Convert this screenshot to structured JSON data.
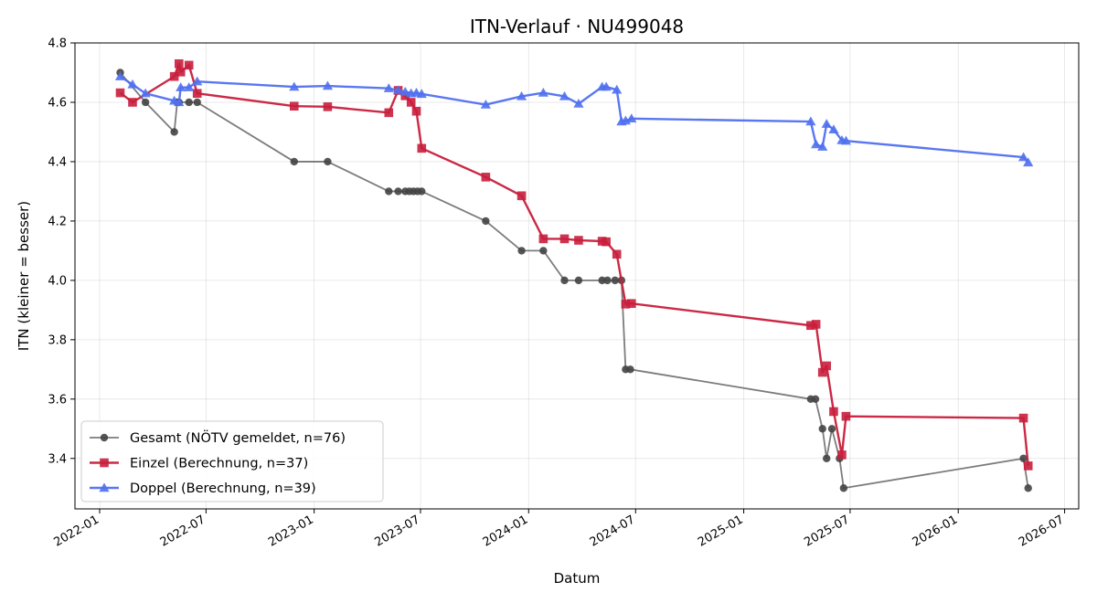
{
  "chart_data": {
    "type": "line",
    "title": "ITN-Verlauf · NU499048",
    "xlabel": "Datum",
    "ylabel": "ITN  (kleiner = besser)",
    "xlim": [
      "2021-11-20",
      "2026-07-25"
    ],
    "ylim": [
      3.23,
      4.8
    ],
    "x_ticks": [
      "2022-01",
      "2022-07",
      "2023-01",
      "2023-07",
      "2024-01",
      "2024-07",
      "2025-01",
      "2025-07",
      "2026-01",
      "2026-07"
    ],
    "y_ticks": [
      3.4,
      3.6,
      3.8,
      4.0,
      4.2,
      4.4,
      4.6,
      4.8
    ],
    "grid": true,
    "legend_position": "lower-left",
    "series": [
      {
        "name": "Gesamt (NÖTV gemeldet, n=76)",
        "color": "#444444",
        "marker": "circle",
        "points": [
          [
            "2022-02-05",
            4.7
          ],
          [
            "2022-03-20",
            4.6
          ],
          [
            "2022-05-08",
            4.5
          ],
          [
            "2022-05-13",
            4.6
          ],
          [
            "2022-05-16",
            4.6
          ],
          [
            "2022-06-02",
            4.6
          ],
          [
            "2022-06-16",
            4.6
          ],
          [
            "2022-11-28",
            4.4
          ],
          [
            "2023-01-24",
            4.4
          ],
          [
            "2023-05-08",
            4.3
          ],
          [
            "2023-05-24",
            4.3
          ],
          [
            "2023-06-05",
            4.3
          ],
          [
            "2023-06-12",
            4.3
          ],
          [
            "2023-06-19",
            4.3
          ],
          [
            "2023-06-26",
            4.3
          ],
          [
            "2023-07-03",
            4.3
          ],
          [
            "2023-10-20",
            4.2
          ],
          [
            "2023-12-20",
            4.1
          ],
          [
            "2024-01-26",
            4.1
          ],
          [
            "2024-03-02",
            4.0
          ],
          [
            "2024-03-26",
            4.0
          ],
          [
            "2024-05-05",
            4.0
          ],
          [
            "2024-05-14",
            4.0
          ],
          [
            "2024-05-27",
            4.0
          ],
          [
            "2024-06-07",
            4.0
          ],
          [
            "2024-06-14",
            3.7
          ],
          [
            "2024-06-22",
            3.7
          ],
          [
            "2025-04-25",
            3.6
          ],
          [
            "2025-05-03",
            3.6
          ],
          [
            "2025-05-15",
            3.5
          ],
          [
            "2025-05-22",
            3.4
          ],
          [
            "2025-05-31",
            3.5
          ],
          [
            "2025-06-13",
            3.4
          ],
          [
            "2025-06-20",
            3.3
          ],
          [
            "2026-04-22",
            3.4
          ],
          [
            "2026-04-30",
            3.3
          ]
        ]
      },
      {
        "name": "Einzel (Berechnung, n=37)",
        "color": "#c81e3c",
        "marker": "square",
        "points": [
          [
            "2022-02-05",
            4.632
          ],
          [
            "2022-02-26",
            4.6
          ],
          [
            "2022-05-08",
            4.687
          ],
          [
            "2022-05-16",
            4.73
          ],
          [
            "2022-05-19",
            4.702
          ],
          [
            "2022-06-02",
            4.725
          ],
          [
            "2022-06-16",
            4.63
          ],
          [
            "2022-11-28",
            4.587
          ],
          [
            "2023-01-24",
            4.585
          ],
          [
            "2023-05-08",
            4.565
          ],
          [
            "2023-05-24",
            4.64
          ],
          [
            "2023-06-05",
            4.622
          ],
          [
            "2023-06-15",
            4.6
          ],
          [
            "2023-06-24",
            4.57
          ],
          [
            "2023-07-03",
            4.445
          ],
          [
            "2023-10-20",
            4.348
          ],
          [
            "2023-12-20",
            4.285
          ],
          [
            "2024-01-26",
            4.14
          ],
          [
            "2024-03-02",
            4.14
          ],
          [
            "2024-03-26",
            4.135
          ],
          [
            "2024-05-05",
            4.132
          ],
          [
            "2024-05-12",
            4.13
          ],
          [
            "2024-05-30",
            4.088
          ],
          [
            "2024-06-14",
            3.92
          ],
          [
            "2024-06-24",
            3.922
          ],
          [
            "2025-04-25",
            3.848
          ],
          [
            "2025-05-04",
            3.852
          ],
          [
            "2025-05-15",
            3.69
          ],
          [
            "2025-05-22",
            3.712
          ],
          [
            "2025-06-03",
            3.558
          ],
          [
            "2025-06-17",
            3.412
          ],
          [
            "2025-06-24",
            3.542
          ],
          [
            "2026-04-22",
            3.536
          ],
          [
            "2026-04-30",
            3.375
          ]
        ]
      },
      {
        "name": "Doppel (Berechnung, n=39)",
        "color": "#5070f0",
        "marker": "triangle",
        "points": [
          [
            "2022-02-05",
            4.687
          ],
          [
            "2022-02-26",
            4.66
          ],
          [
            "2022-03-20",
            4.63
          ],
          [
            "2022-05-08",
            4.605
          ],
          [
            "2022-05-16",
            4.6
          ],
          [
            "2022-05-19",
            4.65
          ],
          [
            "2022-06-02",
            4.65
          ],
          [
            "2022-06-16",
            4.67
          ],
          [
            "2022-11-28",
            4.652
          ],
          [
            "2023-01-24",
            4.655
          ],
          [
            "2023-05-08",
            4.647
          ],
          [
            "2023-05-24",
            4.64
          ],
          [
            "2023-06-05",
            4.635
          ],
          [
            "2023-06-15",
            4.63
          ],
          [
            "2023-06-24",
            4.632
          ],
          [
            "2023-07-03",
            4.628
          ],
          [
            "2023-10-20",
            4.592
          ],
          [
            "2023-12-20",
            4.62
          ],
          [
            "2024-01-26",
            4.632
          ],
          [
            "2024-03-02",
            4.62
          ],
          [
            "2024-03-26",
            4.595
          ],
          [
            "2024-05-05",
            4.652
          ],
          [
            "2024-05-12",
            4.652
          ],
          [
            "2024-05-30",
            4.642
          ],
          [
            "2024-06-07",
            4.535
          ],
          [
            "2024-06-14",
            4.538
          ],
          [
            "2024-06-24",
            4.545
          ],
          [
            "2025-04-25",
            4.535
          ],
          [
            "2025-05-04",
            4.458
          ],
          [
            "2025-05-15",
            4.45
          ],
          [
            "2025-05-22",
            4.527
          ],
          [
            "2025-06-03",
            4.508
          ],
          [
            "2025-06-17",
            4.472
          ],
          [
            "2025-06-24",
            4.47
          ],
          [
            "2026-04-22",
            4.415
          ],
          [
            "2026-04-30",
            4.397
          ]
        ]
      }
    ]
  }
}
